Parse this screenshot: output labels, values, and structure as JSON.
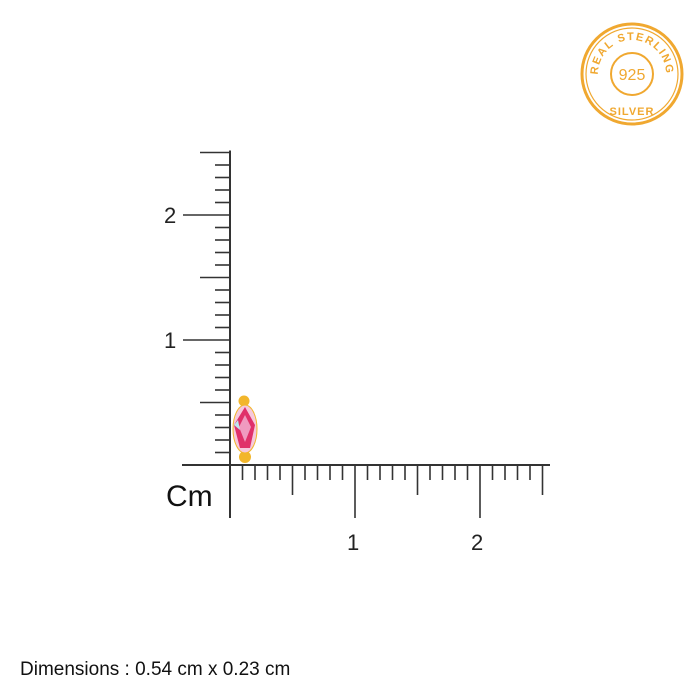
{
  "seal": {
    "top_text": "REAL STERLING",
    "center_text": "925",
    "bottom_text": "SILVER",
    "color": "#f0a830"
  },
  "ruler": {
    "unit": "Cm",
    "vertical_labels": [
      "1",
      "2"
    ],
    "horizontal_labels": [
      "1",
      "2"
    ],
    "max_cm": 2.5,
    "tick_step_cm": 0.1
  },
  "product": {
    "gem_color": "#e0306a",
    "metal_color": "#f2b62c"
  },
  "dimensions": "Dimensions : 0.54 cm x 0.23 cm"
}
